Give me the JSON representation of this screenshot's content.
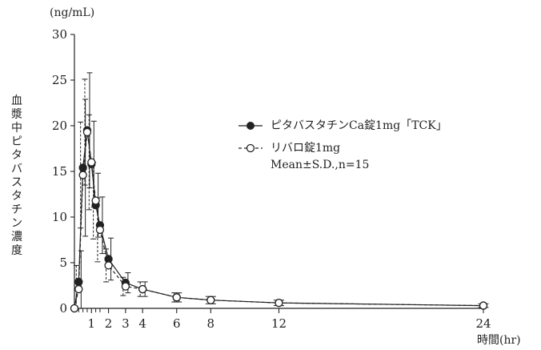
{
  "chart_data": {
    "type": "line",
    "y_unit": "(ng/mL)",
    "ylabel": "血漿中ピタバスタチン濃度",
    "x_unit": "時間(hr)",
    "ylim": [
      0,
      30
    ],
    "xlim": [
      0,
      24
    ],
    "x_ticks": [
      1,
      2,
      3,
      4,
      6,
      8,
      12,
      24
    ],
    "y_ticks": [
      0,
      5,
      10,
      15,
      20,
      25,
      30
    ],
    "series": [
      {
        "name": "ピタバスタチンCa錠1mg「TCK」",
        "marker": "filled-circle",
        "line": "solid",
        "x": [
          0,
          0.25,
          0.5,
          0.75,
          1,
          1.25,
          1.5,
          2,
          3,
          4,
          6,
          8,
          12,
          24
        ],
        "y": [
          0,
          2.9,
          15.4,
          19.5,
          15.8,
          11.3,
          9.1,
          5.4,
          2.8,
          2.1,
          1.2,
          0.9,
          0.6,
          0.3
        ],
        "sd": [
          0,
          3.4,
          7.5,
          6.3,
          4.7,
          3.5,
          3.1,
          2.3,
          1.1,
          0.8,
          0.5,
          0.4,
          0.3,
          0.2
        ]
      },
      {
        "name": "リバロ錠1mg",
        "marker": "open-circle",
        "line": "dashed",
        "x": [
          0,
          0.25,
          0.5,
          0.75,
          1,
          1.25,
          1.5,
          2,
          3,
          4,
          6,
          8,
          12,
          24
        ],
        "y": [
          0,
          2.1,
          14.6,
          19.3,
          16.0,
          11.8,
          8.6,
          4.7,
          2.4,
          2.1,
          1.2,
          0.9,
          0.6,
          0.3
        ],
        "sd": [
          0,
          2.6,
          5.8,
          5.8,
          5.2,
          4.2,
          3.5,
          1.8,
          1.0,
          0.8,
          0.5,
          0.4,
          0.3,
          0.2
        ]
      }
    ],
    "legend_note": "Mean±S.D.,n=15",
    "legend_position": "upper-right"
  }
}
